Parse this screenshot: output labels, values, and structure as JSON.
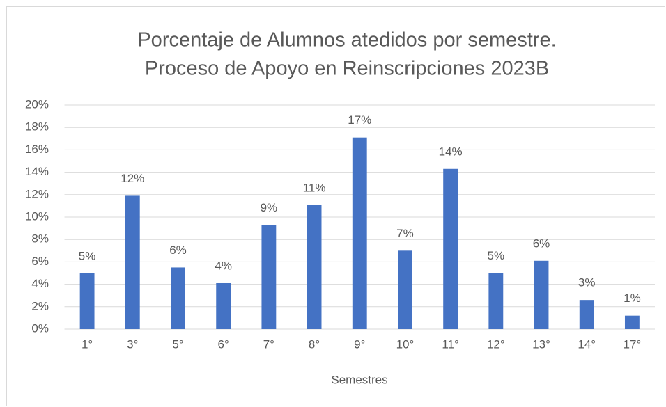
{
  "chart_data": {
    "type": "bar",
    "title": [
      "Porcentaje de Alumnos atedidos por semestre.",
      "Proceso de Apoyo en Reinscripciones 2023B"
    ],
    "x_label": "Semestres",
    "categories": [
      "1°",
      "3°",
      "5°",
      "6°",
      "7°",
      "8°",
      "9°",
      "10°",
      "11°",
      "12°",
      "13°",
      "14°",
      "17°"
    ],
    "values": [
      4.97,
      11.9,
      5.5,
      4.1,
      9.3,
      11.06,
      17.1,
      7.0,
      14.3,
      5.0,
      6.1,
      2.6,
      1.2
    ],
    "value_labels": [
      "5%",
      "12%",
      "6%",
      "4%",
      "9%",
      "11%",
      "17%",
      "7%",
      "14%",
      "5%",
      "6%",
      "3%",
      "1%"
    ],
    "color": "#4472c4",
    "ylim": [
      0,
      20
    ],
    "yticks": [
      {
        "value": 0,
        "label": "0%"
      },
      {
        "value": 2,
        "label": "2%"
      },
      {
        "value": 4,
        "label": "4%"
      },
      {
        "value": 6,
        "label": "6%"
      },
      {
        "value": 8,
        "label": "8%"
      },
      {
        "value": 10,
        "label": "10%"
      },
      {
        "value": 12,
        "label": "12%"
      },
      {
        "value": 14,
        "label": "14%"
      },
      {
        "value": 16,
        "label": "16%"
      },
      {
        "value": 18,
        "label": "18%"
      },
      {
        "value": 20,
        "label": "20%"
      }
    ],
    "grid": true
  }
}
